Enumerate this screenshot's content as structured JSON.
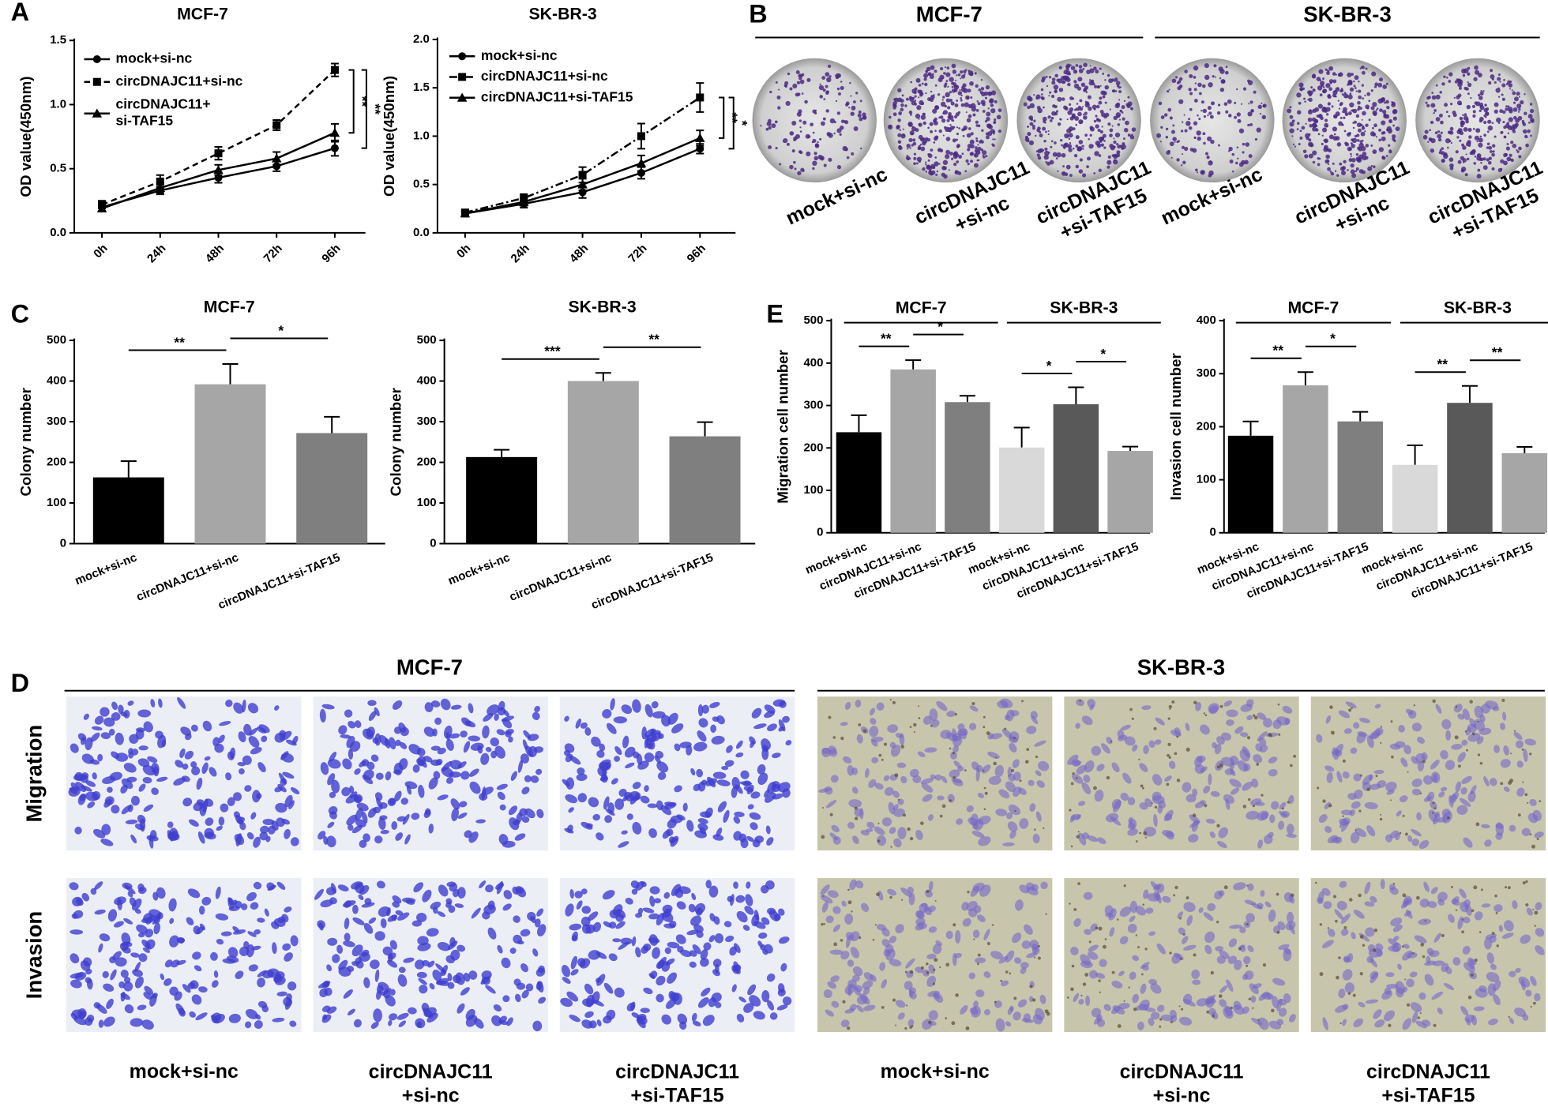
{
  "panels": {
    "letters": [
      "A",
      "B",
      "C",
      "D",
      "E"
    ],
    "B": {
      "groups": [
        "MCF-7",
        "SK-BR-3"
      ],
      "labels": [
        "mock+si-nc",
        "circDNAJC11\n+si-nc",
        "circDNAJC11\n+si-TAF15",
        "mock+si-nc",
        "circDNAJC11\n+si-nc",
        "circDNAJC11\n+si-TAF15"
      ]
    },
    "D": {
      "groups": [
        "MCF-7",
        "SK-BR-3"
      ],
      "rows": [
        "Migration",
        "Invasion"
      ],
      "labels": [
        "mock+si-nc",
        "circDNAJC11\n+si-nc",
        "circDNAJC11\n+si-TAF15",
        "mock+si-nc",
        "circDNAJC11\n+si-nc",
        "circDNAJC11\n+si-TAF15"
      ]
    }
  },
  "chart_data": [
    {
      "type": "line",
      "title": "MCF-7",
      "ylabel": "OD value(450nm)",
      "categories": [
        "0h",
        "24h",
        "48h",
        "72h",
        "96h"
      ],
      "ylim": [
        0,
        1.5
      ],
      "yticks": [
        {
          "value": 0,
          "label": "0.0"
        },
        {
          "value": 0.5,
          "label": "0.5"
        },
        {
          "value": 1,
          "label": "1.0"
        },
        {
          "value": 1.5,
          "label": "1.5"
        }
      ],
      "series": [
        {
          "name": "mock+si-nc",
          "color": "#000000",
          "marker": "circle",
          "linestyle": "solid",
          "values": [
            0.2,
            0.33,
            0.43,
            0.52,
            0.66
          ],
          "errors": [
            0.03,
            0.03,
            0.04,
            0.04,
            0.06
          ]
        },
        {
          "name": "circDNAJC11+si-nc",
          "color": "#000000",
          "marker": "square",
          "linestyle": "dashed",
          "values": [
            0.22,
            0.4,
            0.62,
            0.84,
            1.27
          ],
          "errors": [
            0.03,
            0.05,
            0.05,
            0.04,
            0.05
          ]
        },
        {
          "name": "circDNAJC11+\nsi-TAF15",
          "color": "#000000",
          "marker": "triangle",
          "linestyle": "solid",
          "values": [
            0.19,
            0.35,
            0.49,
            0.58,
            0.78
          ],
          "errors": [
            0.02,
            0.04,
            0.04,
            0.05,
            0.07
          ]
        }
      ],
      "annotations": [
        "**",
        "**"
      ]
    },
    {
      "type": "line",
      "title": "SK-BR-3",
      "ylabel": "OD value(450nm)",
      "categories": [
        "0h",
        "24h",
        "48h",
        "72h",
        "96h"
      ],
      "ylim": [
        0,
        2
      ],
      "yticks": [
        {
          "value": 0,
          "label": "0.0"
        },
        {
          "value": 0.5,
          "label": "0.5"
        },
        {
          "value": 1,
          "label": "1.0"
        },
        {
          "value": 1.5,
          "label": "1.5"
        },
        {
          "value": 2,
          "label": "2.0"
        }
      ],
      "series": [
        {
          "name": "mock+si-nc",
          "color": "#000000",
          "marker": "circle",
          "linestyle": "solid",
          "values": [
            0.2,
            0.3,
            0.42,
            0.62,
            0.87
          ],
          "errors": [
            0.03,
            0.04,
            0.06,
            0.06,
            0.05
          ]
        },
        {
          "name": "circDNAJC11+si-nc",
          "color": "#000000",
          "marker": "square",
          "linestyle": "dashdot",
          "values": [
            0.21,
            0.36,
            0.6,
            1.0,
            1.4
          ],
          "errors": [
            0.03,
            0.04,
            0.08,
            0.13,
            0.15
          ]
        },
        {
          "name": "circDNAJC11+si-TAF15",
          "color": "#000000",
          "marker": "triangle",
          "linestyle": "solid",
          "values": [
            0.2,
            0.32,
            0.5,
            0.72,
            0.98
          ],
          "errors": [
            0.02,
            0.04,
            0.06,
            0.08,
            0.08
          ]
        }
      ],
      "annotations": [
        "**",
        "*"
      ]
    },
    {
      "type": "bar",
      "title": "MCF-7",
      "ylabel": "Colony number",
      "categories": [
        "mock+si-nc",
        "circDNAJC11+si-nc",
        "circDNAJC11+si-TAF15"
      ],
      "values": [
        163,
        392,
        272
      ],
      "errors": [
        40,
        50,
        40
      ],
      "colors": [
        "#000000",
        "#a6a6a6",
        "#7f7f7f"
      ],
      "ylim": [
        0,
        500
      ],
      "yticks": [
        0,
        100,
        200,
        300,
        400,
        500
      ],
      "annotations": [
        "**",
        "*"
      ]
    },
    {
      "type": "bar",
      "title": "SK-BR-3",
      "ylabel": "Colony number",
      "categories": [
        "mock+si-nc",
        "circDNAJC11+si-nc",
        "circDNAJC11+si-TAF15"
      ],
      "values": [
        213,
        400,
        264
      ],
      "errors": [
        18,
        20,
        35
      ],
      "colors": [
        "#000000",
        "#a6a6a6",
        "#7f7f7f"
      ],
      "ylim": [
        0,
        500
      ],
      "yticks": [
        0,
        100,
        200,
        300,
        400,
        500
      ],
      "annotations": [
        "***",
        "**"
      ]
    },
    {
      "type": "bar",
      "ylabel": "Migration cell number",
      "groups": [
        "MCF-7",
        "SK-BR-3"
      ],
      "categories": [
        "mock+si-nc",
        "circDNAJC11+si-nc",
        "circDNAJC11+si-TAF15",
        "mock+si-nc",
        "circDNAJC11+si-nc",
        "circDNAJC11+si-TAF15"
      ],
      "values": [
        237,
        385,
        308,
        201,
        303,
        193
      ],
      "errors": [
        40,
        22,
        15,
        47,
        40,
        10
      ],
      "colors": [
        "#000000",
        "#a6a6a6",
        "#7f7f7f",
        "#d9d9d9",
        "#595959",
        "#a6a6a6"
      ],
      "ylim": [
        0,
        500
      ],
      "yticks": [
        0,
        100,
        200,
        300,
        400,
        500
      ],
      "annotations": [
        "**",
        "*",
        "*",
        "*"
      ]
    },
    {
      "type": "bar",
      "ylabel": "Invasion cell number",
      "groups": [
        "MCF-7",
        "SK-BR-3"
      ],
      "categories": [
        "mock+si-nc",
        "circDNAJC11+si-nc",
        "circDNAJC11+si-TAF15",
        "mock+si-nc",
        "circDNAJC11+si-nc",
        "circDNAJC11+si-TAF15"
      ],
      "values": [
        183,
        278,
        210,
        128,
        245,
        150
      ],
      "errors": [
        27,
        25,
        18,
        37,
        32,
        12
      ],
      "colors": [
        "#000000",
        "#a6a6a6",
        "#7f7f7f",
        "#d9d9d9",
        "#595959",
        "#a6a6a6"
      ],
      "ylim": [
        0,
        400
      ],
      "yticks": [
        0,
        100,
        200,
        300,
        400
      ],
      "annotations": [
        "**",
        "*",
        "**",
        "**"
      ]
    }
  ]
}
